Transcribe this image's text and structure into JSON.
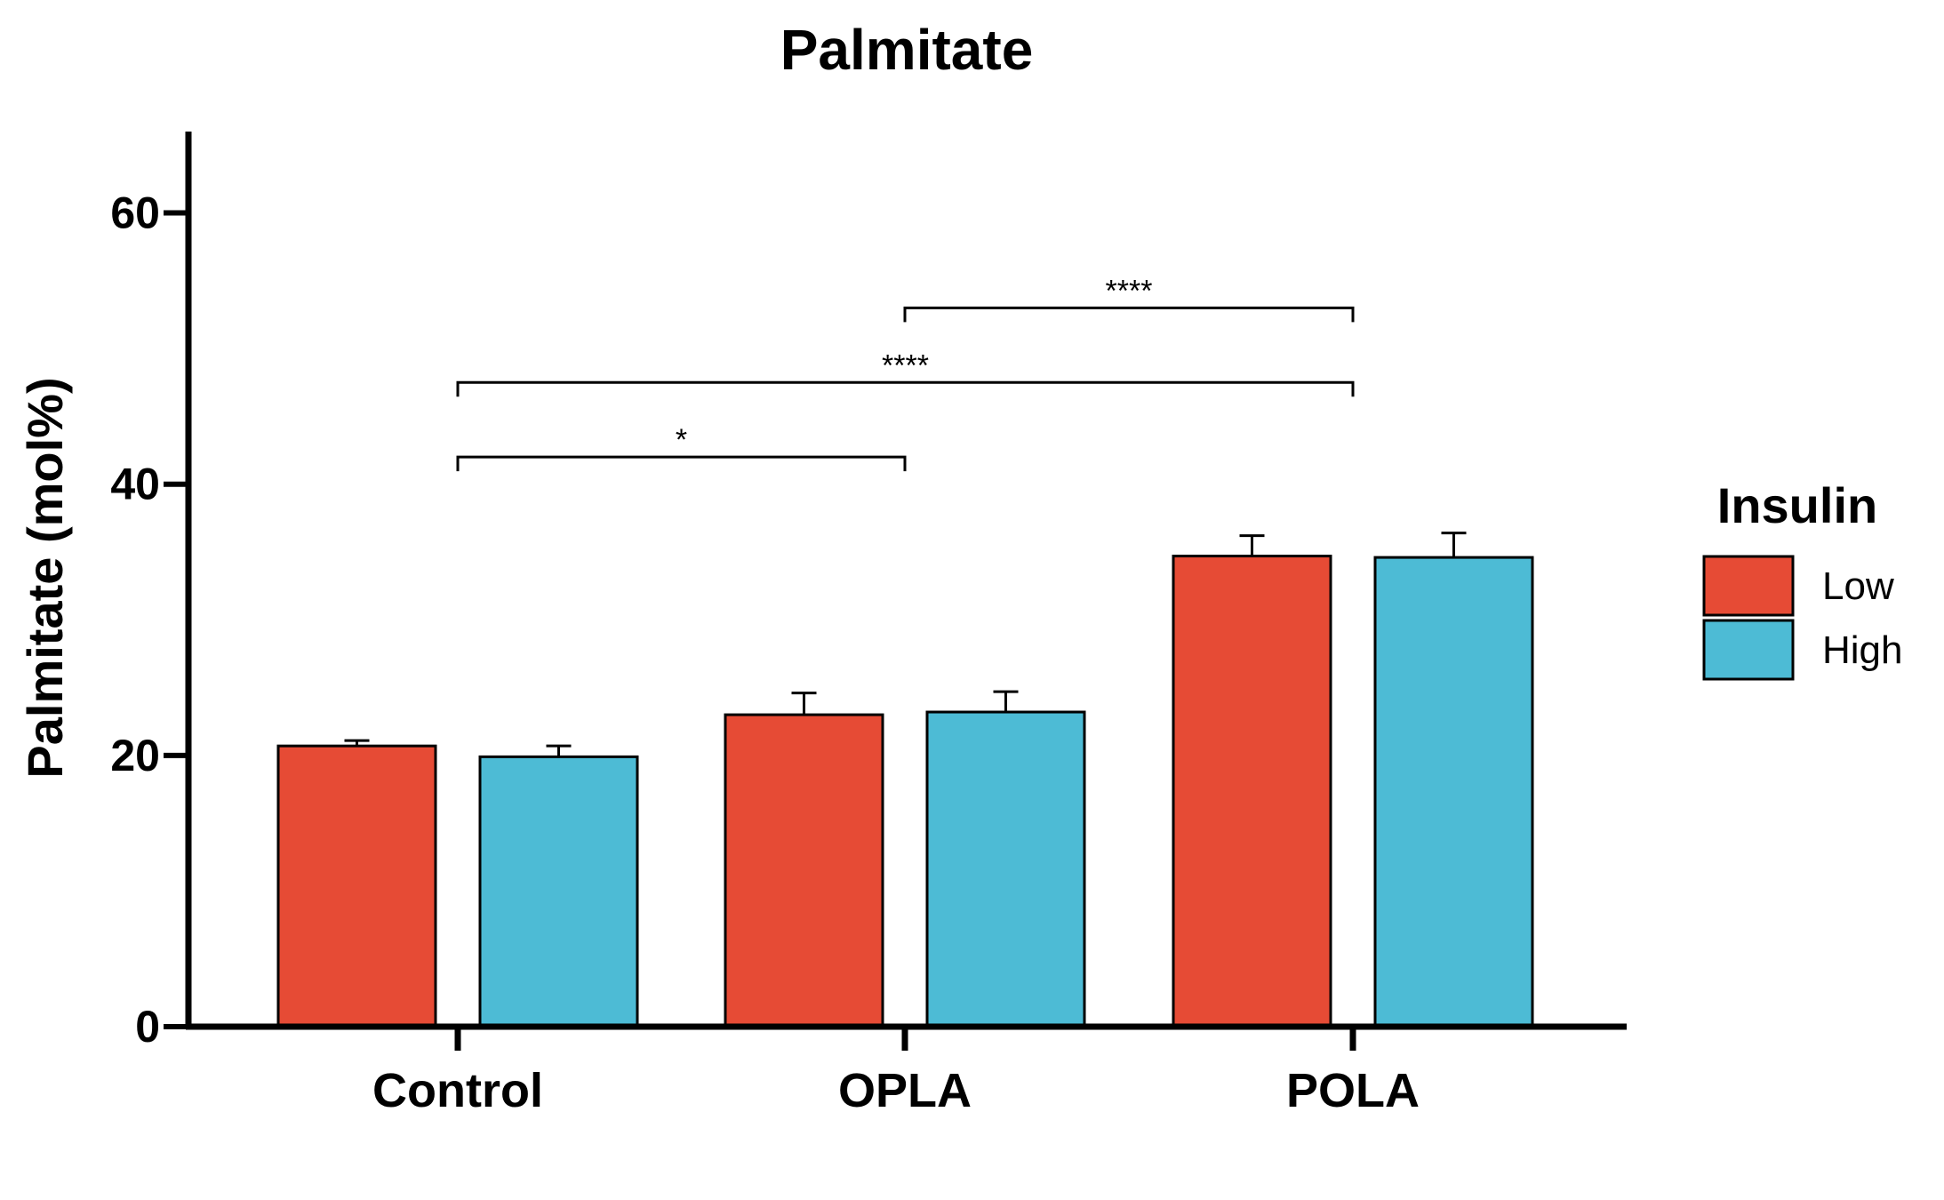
{
  "chart_data": {
    "type": "bar",
    "title": "Palmitate",
    "ylabel": "Palmitate (mol%)",
    "xlabel": "",
    "ylim": [
      0,
      66
    ],
    "yticks": [
      0,
      20,
      40,
      60
    ],
    "grid": false,
    "legend": {
      "title": "Insulin",
      "placement": "right"
    },
    "categories": [
      "Control",
      "OPLA",
      "POLA"
    ],
    "series": [
      {
        "name": "Low",
        "color": "#E64B35",
        "values": [
          20.7,
          23.0,
          34.7
        ],
        "errors": [
          0.4,
          1.6,
          1.5
        ]
      },
      {
        "name": "High",
        "color": "#4DBBD5",
        "values": [
          19.9,
          23.2,
          34.6
        ],
        "errors": [
          0.8,
          1.5,
          1.8
        ]
      }
    ],
    "significance": [
      {
        "from": "Control",
        "to": "OPLA",
        "label": "*",
        "y": 42
      },
      {
        "from": "Control",
        "to": "POLA",
        "label": "****",
        "y": 47.5
      },
      {
        "from": "OPLA",
        "to": "POLA",
        "label": "****",
        "y": 53
      }
    ]
  }
}
